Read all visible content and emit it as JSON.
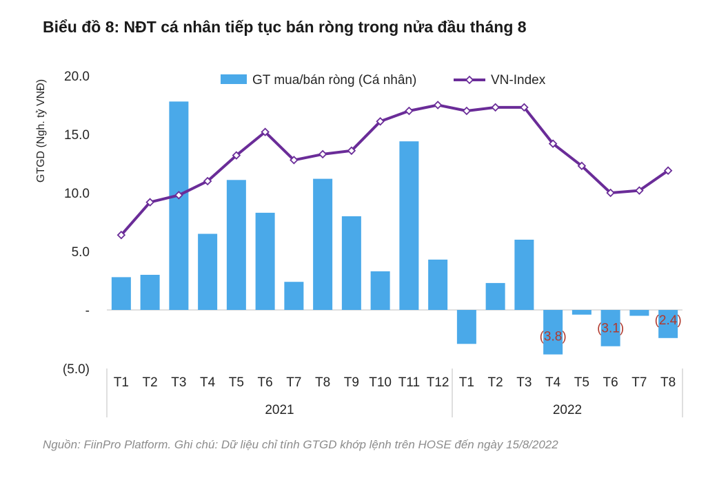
{
  "chart_data": {
    "type": "bar+line",
    "title": "Biểu đồ 8: NĐT cá nhân tiếp tục bán ròng trong nửa đầu tháng 8",
    "ylabel": "GTGD (Ngh. tỷ VNĐ)",
    "ylim": [
      -5,
      20
    ],
    "y_ticks": [
      {
        "value": 20,
        "label": "20.0"
      },
      {
        "value": 15,
        "label": "15.0"
      },
      {
        "value": 10,
        "label": "10.0"
      },
      {
        "value": 5,
        "label": "5.0"
      },
      {
        "value": 0,
        "label": "-"
      },
      {
        "value": -5,
        "label": "(5.0)"
      }
    ],
    "categories": [
      "T1",
      "T2",
      "T3",
      "T4",
      "T5",
      "T6",
      "T7",
      "T8",
      "T9",
      "T10",
      "T11",
      "T12",
      "T1",
      "T2",
      "T3",
      "T4",
      "T5",
      "T6",
      "T7",
      "T8"
    ],
    "groups": [
      {
        "label": "2021",
        "start": 0,
        "end": 11
      },
      {
        "label": "2022",
        "start": 12,
        "end": 19
      }
    ],
    "series": [
      {
        "name": "GT mua/bán ròng (Cá nhân)",
        "type": "bar",
        "color": "#4aa9e9",
        "values": [
          2.8,
          3.0,
          17.8,
          6.5,
          11.1,
          8.3,
          2.4,
          11.2,
          8.0,
          3.3,
          14.4,
          4.3,
          -2.9,
          2.3,
          6.0,
          -3.8,
          -0.4,
          -3.1,
          -0.5,
          -2.4
        ]
      },
      {
        "name": "VN-Index",
        "type": "line",
        "color": "#6a2c98",
        "values": [
          6.4,
          9.2,
          9.8,
          11.0,
          13.2,
          15.2,
          12.8,
          13.3,
          13.6,
          16.1,
          17.0,
          17.5,
          17.0,
          17.3,
          17.3,
          14.2,
          12.3,
          10.0,
          10.2,
          11.9
        ]
      }
    ],
    "data_labels": [
      {
        "index": 15,
        "text": "(3.8)"
      },
      {
        "index": 17,
        "text": "(3.1)"
      },
      {
        "index": 19,
        "text": "(2.4)"
      }
    ],
    "legend_position": "top",
    "grid": false
  },
  "source_note": "Nguồn: FiinPro Platform. Ghi chú: Dữ liệu chỉ tính GTGD khớp lệnh trên HOSE đến ngày 15/8/2022",
  "colors": {
    "bar": "#4aa9e9",
    "line": "#6a2c98",
    "label": "#b03a2e",
    "axis": "#bfbfbf",
    "text": "#262626"
  }
}
